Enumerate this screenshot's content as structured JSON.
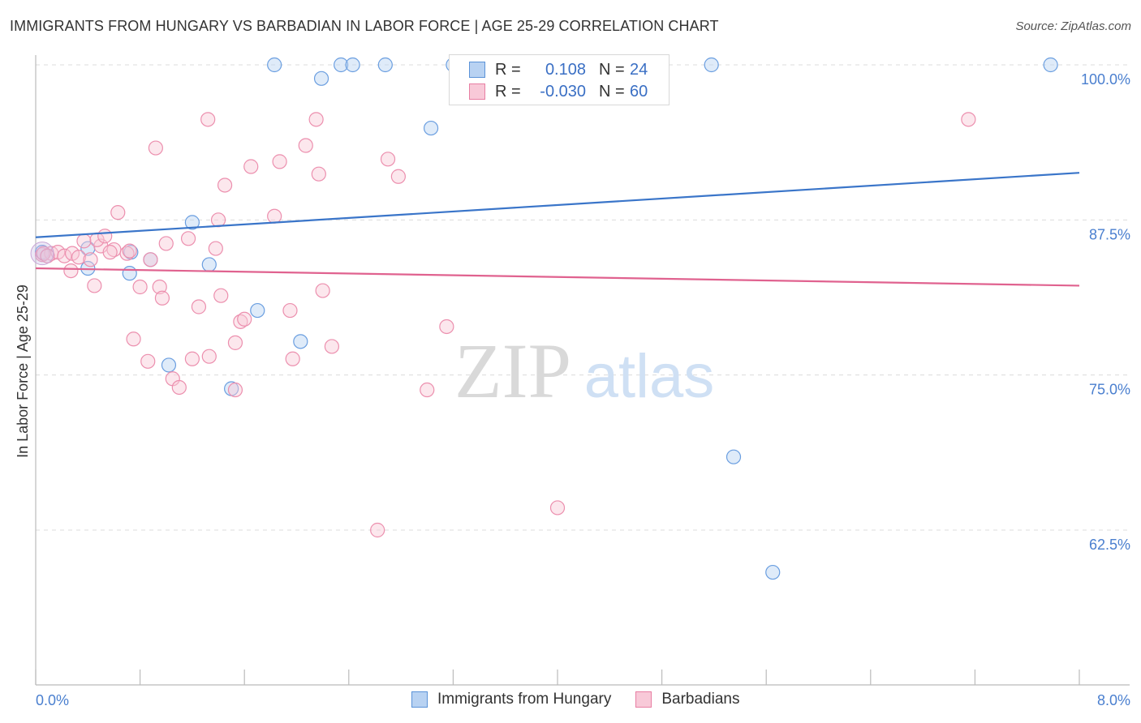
{
  "header": {
    "title": "IMMIGRANTS FROM HUNGARY VS BARBADIAN IN LABOR FORCE | AGE 25-29 CORRELATION CHART",
    "source": "Source: ZipAtlas.com"
  },
  "watermark": {
    "zip": "ZIP",
    "atlas": "atlas"
  },
  "legend": {
    "rows": [
      {
        "r_label": "R =",
        "r_value": "0.108",
        "n_label": "N =",
        "n_value": "24",
        "color": "#5b93d8",
        "fill": "#b8d2f2"
      },
      {
        "r_label": "R =",
        "r_value": "-0.030",
        "n_label": "N =",
        "n_value": "60",
        "color": "#e87fa3",
        "fill": "#f8c9d8"
      }
    ]
  },
  "bottom_legend": {
    "items": [
      {
        "label": "Immigrants from Hungary"
      },
      {
        "label": "Barbadians"
      }
    ]
  },
  "chart_data": {
    "type": "scatter",
    "title": "IMMIGRANTS FROM HUNGARY VS BARBADIAN IN LABOR FORCE | AGE 25-29 CORRELATION CHART",
    "ylabel": "In Labor Force | Age 25-29",
    "xlabel": "",
    "xlim": [
      0,
      8
    ],
    "ylim": [
      50,
      101
    ],
    "x_tick_labels": [
      "0.0%",
      "8.0%"
    ],
    "y_ticks": [
      62.5,
      75.0,
      87.5,
      100.0
    ],
    "y_tick_labels": [
      "62.5%",
      "75.0%",
      "87.5%",
      "100.0%"
    ],
    "grid": true,
    "colors": {
      "hungary": "#3a75c9",
      "barbadians": "#e0628f"
    },
    "series": [
      {
        "name": "Immigrants from Hungary",
        "points": [
          [
            0.05,
            84.9
          ],
          [
            0.4,
            85.2
          ],
          [
            0.4,
            83.6
          ],
          [
            0.73,
            84.9
          ],
          [
            0.72,
            83.2
          ],
          [
            0.88,
            84.3
          ],
          [
            1.2,
            87.3
          ],
          [
            1.33,
            83.9
          ],
          [
            1.02,
            75.8
          ],
          [
            1.5,
            73.9
          ],
          [
            1.7,
            80.2
          ],
          [
            2.03,
            77.7
          ],
          [
            1.83,
            100.0
          ],
          [
            2.19,
            98.9
          ],
          [
            2.34,
            100.0
          ],
          [
            2.43,
            100.0
          ],
          [
            2.68,
            100.0
          ],
          [
            3.03,
            94.9
          ],
          [
            3.2,
            100.0
          ],
          [
            3.8,
            100.0
          ],
          [
            5.18,
            100.0
          ],
          [
            7.78,
            100.0
          ],
          [
            5.35,
            68.4
          ],
          [
            5.65,
            59.1
          ]
        ],
        "trend": [
          [
            0,
            86.1
          ],
          [
            8,
            91.3
          ]
        ]
      },
      {
        "name": "Barbadians",
        "points": [
          [
            0.05,
            84.7
          ],
          [
            0.12,
            84.8
          ],
          [
            0.17,
            84.9
          ],
          [
            0.22,
            84.6
          ],
          [
            0.28,
            84.8
          ],
          [
            0.33,
            84.5
          ],
          [
            0.37,
            85.8
          ],
          [
            0.5,
            85.4
          ],
          [
            0.42,
            84.3
          ],
          [
            0.47,
            85.9
          ],
          [
            0.27,
            83.4
          ],
          [
            0.45,
            82.2
          ],
          [
            0.53,
            86.2
          ],
          [
            0.6,
            85.1
          ],
          [
            0.57,
            84.9
          ],
          [
            0.7,
            84.8
          ],
          [
            0.72,
            85.0
          ],
          [
            0.63,
            88.1
          ],
          [
            0.8,
            82.1
          ],
          [
            0.75,
            77.9
          ],
          [
            0.86,
            76.1
          ],
          [
            0.88,
            84.3
          ],
          [
            0.92,
            93.3
          ],
          [
            0.95,
            82.1
          ],
          [
            0.97,
            81.2
          ],
          [
            1.0,
            85.6
          ],
          [
            1.05,
            74.7
          ],
          [
            1.1,
            74.0
          ],
          [
            1.17,
            86.0
          ],
          [
            1.2,
            76.3
          ],
          [
            1.25,
            80.5
          ],
          [
            1.33,
            76.5
          ],
          [
            1.32,
            95.6
          ],
          [
            1.38,
            85.2
          ],
          [
            1.4,
            87.5
          ],
          [
            1.42,
            81.4
          ],
          [
            1.45,
            90.3
          ],
          [
            1.53,
            77.6
          ],
          [
            1.57,
            79.3
          ],
          [
            1.6,
            79.5
          ],
          [
            1.65,
            91.8
          ],
          [
            1.53,
            73.8
          ],
          [
            1.83,
            87.8
          ],
          [
            1.87,
            92.2
          ],
          [
            1.95,
            80.2
          ],
          [
            1.97,
            76.3
          ],
          [
            2.07,
            93.5
          ],
          [
            2.15,
            95.6
          ],
          [
            2.17,
            91.2
          ],
          [
            2.2,
            81.8
          ],
          [
            2.27,
            77.3
          ],
          [
            2.7,
            92.4
          ],
          [
            2.78,
            91.0
          ],
          [
            3.0,
            73.8
          ],
          [
            3.15,
            78.9
          ],
          [
            2.62,
            62.5
          ],
          [
            4.0,
            64.3
          ],
          [
            7.15,
            95.6
          ],
          [
            0.06,
            84.8
          ],
          [
            0.09,
            84.6
          ]
        ],
        "trend": [
          [
            0,
            83.6
          ],
          [
            8,
            82.2
          ]
        ]
      }
    ]
  }
}
